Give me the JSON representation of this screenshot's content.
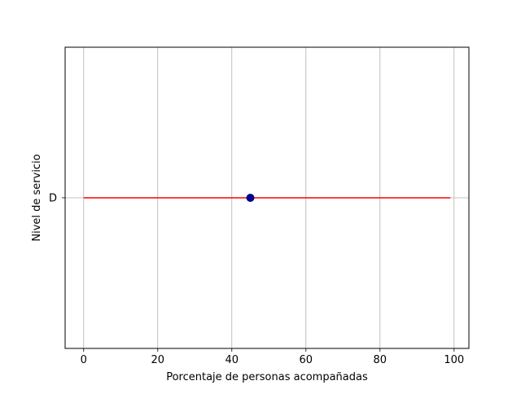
{
  "chart_data": {
    "type": "scatter",
    "title": "",
    "xlabel": "Porcentaje de personas acompañadas",
    "ylabel": "Nivel de servicio",
    "xlim": [
      -5,
      104
    ],
    "x_ticks": [
      0,
      20,
      40,
      60,
      80,
      100
    ],
    "y_categories": [
      "D"
    ],
    "grid": true,
    "points": [
      {
        "x": 45,
        "y": "D",
        "color": "#00008b"
      }
    ],
    "segments": [
      {
        "x_start": 0,
        "x_end": 99,
        "y": "D",
        "color": "#ff0000"
      }
    ]
  }
}
